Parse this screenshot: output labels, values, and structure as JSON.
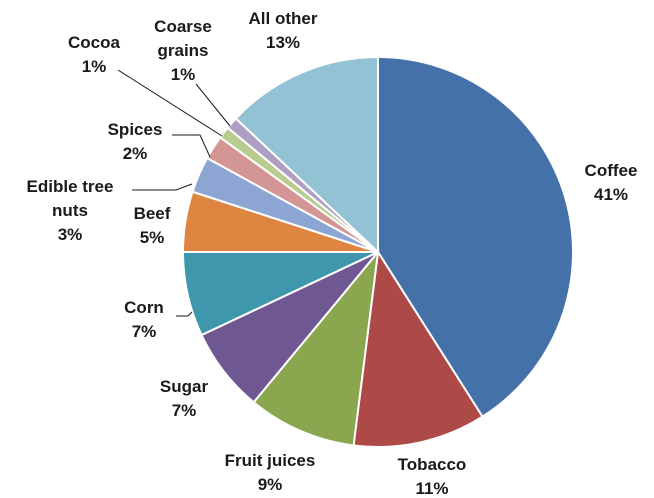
{
  "chart_data": {
    "type": "pie",
    "title": "",
    "start_angle_deg": 0,
    "direction": "clockwise",
    "slices": [
      {
        "name": "Coffee",
        "label": "Coffee",
        "value": 41,
        "pct_label": "41%",
        "color": "#4472a8"
      },
      {
        "name": "Tobacco",
        "label": "Tobacco",
        "value": 11,
        "pct_label": "11%",
        "color": "#ad4a47"
      },
      {
        "name": "Fruit juices",
        "label": "Fruit juices",
        "value": 9,
        "pct_label": "9%",
        "color": "#8aa64e"
      },
      {
        "name": "Sugar",
        "label": "Sugar",
        "value": 7,
        "pct_label": "7%",
        "color": "#6f5792"
      },
      {
        "name": "Corn",
        "label": "Corn",
        "value": 7,
        "pct_label": "7%",
        "color": "#3e97ad"
      },
      {
        "name": "Beef",
        "label": "Beef",
        "value": 5,
        "pct_label": "5%",
        "color": "#de8541"
      },
      {
        "name": "Edible tree nuts",
        "label": "Edible tree nuts",
        "value": 3,
        "pct_label": "3%",
        "color": "#8da5d3"
      },
      {
        "name": "Spices",
        "label": "Spices",
        "value": 2,
        "pct_label": "2%",
        "color": "#d49694"
      },
      {
        "name": "Coarse grains",
        "label": "Coarse grains",
        "value": 1,
        "pct_label": "1%",
        "color": "#b7cc8e"
      },
      {
        "name": "Cocoa",
        "label": "Cocoa",
        "value": 1,
        "pct_label": "1%",
        "color": "#ad9fc4"
      },
      {
        "name": "All other",
        "label": "All other",
        "value": 13,
        "pct_label": "13%",
        "color": "#93c2d4"
      }
    ]
  }
}
